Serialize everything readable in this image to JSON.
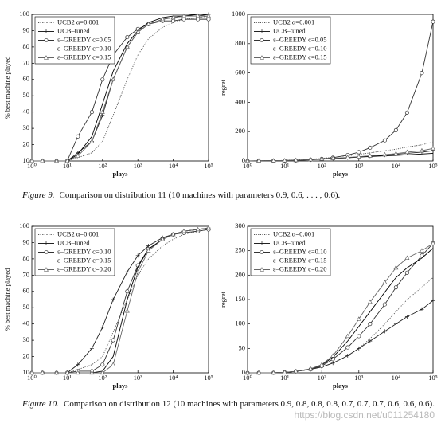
{
  "chart_data": [
    {
      "type": "line",
      "xlabel": "plays",
      "ylabel": "% best machine played",
      "xscale": "log",
      "x": [
        1,
        2,
        5,
        10,
        20,
        50,
        100,
        200,
        500,
        1000,
        2000,
        5000,
        10000,
        20000,
        50000,
        100000
      ],
      "xlim": [
        1,
        100000
      ],
      "xticks": [
        {
          "value": 1,
          "label": "10⁰"
        },
        {
          "value": 10,
          "label": "10¹"
        },
        {
          "value": 100,
          "label": "10²"
        },
        {
          "value": 1000,
          "label": "10³"
        },
        {
          "value": 10000,
          "label": "10⁴"
        },
        {
          "value": 100000,
          "label": "10⁵"
        }
      ],
      "ylim": [
        10,
        100
      ],
      "yticks": [
        10,
        20,
        30,
        40,
        50,
        60,
        70,
        80,
        90,
        100
      ],
      "legend": "upper left",
      "series": [
        {
          "name": "UCB2 α=0.001",
          "color": "#555555",
          "dash": "dotted",
          "marker": "none",
          "values": [
            10,
            10,
            10,
            10,
            12,
            15,
            22,
            38,
            60,
            75,
            85,
            92,
            95,
            97,
            98,
            99
          ]
        },
        {
          "name": "UCB–tuned",
          "color": "#222222",
          "dash": "solid",
          "marker": "plus",
          "values": [
            10,
            10,
            10,
            10,
            15,
            22,
            38,
            60,
            80,
            89,
            94,
            97,
            98,
            99,
            99,
            100
          ]
        },
        {
          "name": "ε–GREEDY c=0.05",
          "color": "#333333",
          "dash": "solid",
          "marker": "circle",
          "values": [
            10,
            10,
            10,
            10,
            25,
            40,
            60,
            75,
            86,
            91,
            94,
            96,
            96,
            97,
            97,
            97
          ]
        },
        {
          "name": "ε–GREEDY c=0.10",
          "color": "#000000",
          "dash": "solid",
          "marker": "none",
          "values": [
            10,
            10,
            10,
            10,
            14,
            25,
            45,
            65,
            82,
            90,
            95,
            98,
            99,
            99,
            100,
            100
          ]
        },
        {
          "name": "ε–GREEDY c=0.15",
          "color": "#666666",
          "dash": "solid",
          "marker": "triangle",
          "values": [
            10,
            10,
            10,
            10,
            13,
            22,
            40,
            60,
            80,
            89,
            94,
            97,
            98,
            99,
            99,
            99
          ]
        }
      ]
    },
    {
      "type": "line",
      "xlabel": "plays",
      "ylabel": "regret",
      "xscale": "log",
      "x": [
        1,
        2,
        5,
        10,
        20,
        50,
        100,
        200,
        500,
        1000,
        2000,
        5000,
        10000,
        20000,
        50000,
        100000
      ],
      "xlim": [
        1,
        100000
      ],
      "xticks": [
        {
          "value": 1,
          "label": "10⁰"
        },
        {
          "value": 10,
          "label": "10¹"
        },
        {
          "value": 100,
          "label": "10²"
        },
        {
          "value": 1000,
          "label": "10³"
        },
        {
          "value": 10000,
          "label": "10⁴"
        },
        {
          "value": 100000,
          "label": "10⁵"
        }
      ],
      "ylim": [
        0,
        1000
      ],
      "yticks": [
        0,
        200,
        400,
        600,
        800,
        1000
      ],
      "legend": "upper left",
      "series": [
        {
          "name": "UCB2 α=0.001",
          "color": "#555555",
          "dash": "dotted",
          "marker": "none",
          "values": [
            0,
            1,
            2,
            4,
            7,
            12,
            18,
            25,
            35,
            45,
            55,
            70,
            80,
            95,
            110,
            130
          ]
        },
        {
          "name": "UCB–tuned",
          "color": "#222222",
          "dash": "solid",
          "marker": "plus",
          "values": [
            0,
            1,
            2,
            3,
            5,
            8,
            12,
            16,
            22,
            28,
            33,
            40,
            45,
            52,
            60,
            70
          ]
        },
        {
          "name": "ε–GREEDY c=0.05",
          "color": "#333333",
          "dash": "solid",
          "marker": "circle",
          "values": [
            0,
            0,
            1,
            2,
            4,
            8,
            14,
            22,
            40,
            60,
            90,
            140,
            210,
            330,
            600,
            950
          ]
        },
        {
          "name": "ε–GREEDY c=0.10",
          "color": "#000000",
          "dash": "solid",
          "marker": "none",
          "values": [
            0,
            1,
            2,
            3,
            5,
            9,
            13,
            17,
            22,
            26,
            30,
            35,
            38,
            42,
            47,
            52
          ]
        },
        {
          "name": "ε–GREEDY c=0.15",
          "color": "#666666",
          "dash": "solid",
          "marker": "triangle",
          "values": [
            0,
            1,
            2,
            3,
            5,
            9,
            14,
            18,
            24,
            29,
            35,
            43,
            50,
            60,
            70,
            85
          ]
        }
      ]
    },
    {
      "type": "line",
      "xlabel": "plays",
      "ylabel": "% best machine played",
      "xscale": "log",
      "x": [
        1,
        2,
        5,
        10,
        20,
        50,
        100,
        200,
        500,
        1000,
        2000,
        5000,
        10000,
        20000,
        50000,
        100000
      ],
      "xlim": [
        1,
        100000
      ],
      "xticks": [
        {
          "value": 1,
          "label": "10⁰"
        },
        {
          "value": 10,
          "label": "10¹"
        },
        {
          "value": 100,
          "label": "10²"
        },
        {
          "value": 1000,
          "label": "10³"
        },
        {
          "value": 10000,
          "label": "10⁴"
        },
        {
          "value": 100000,
          "label": "10⁵"
        }
      ],
      "ylim": [
        10,
        100
      ],
      "yticks": [
        10,
        20,
        30,
        40,
        50,
        60,
        70,
        80,
        90,
        100
      ],
      "legend": "upper left",
      "series": [
        {
          "name": "UCB2 α=0.001",
          "color": "#555555",
          "dash": "dotted",
          "marker": "none",
          "values": [
            10,
            10,
            10,
            10,
            12,
            15,
            20,
            35,
            55,
            70,
            80,
            88,
            92,
            95,
            97,
            98
          ]
        },
        {
          "name": "UCB–tuned",
          "color": "#222222",
          "dash": "solid",
          "marker": "plus",
          "values": [
            10,
            10,
            10,
            10,
            15,
            25,
            38,
            55,
            72,
            82,
            88,
            93,
            95,
            97,
            98,
            99
          ]
        },
        {
          "name": "ε–GREEDY c=0.10",
          "color": "#333333",
          "dash": "solid",
          "marker": "circle",
          "values": [
            10,
            10,
            10,
            10,
            11,
            11,
            15,
            30,
            60,
            76,
            86,
            92,
            95,
            96,
            97,
            98
          ]
        },
        {
          "name": "ε–GREEDY c=0.15",
          "color": "#000000",
          "dash": "solid",
          "marker": "none",
          "values": [
            10,
            10,
            10,
            10,
            10,
            10,
            11,
            20,
            55,
            75,
            86,
            92,
            95,
            97,
            98,
            99
          ]
        },
        {
          "name": "ε–GREEDY c=0.20",
          "color": "#666666",
          "dash": "solid",
          "marker": "triangle",
          "values": [
            10,
            10,
            10,
            10,
            10,
            10,
            10,
            15,
            48,
            72,
            85,
            92,
            95,
            97,
            98,
            99
          ]
        }
      ]
    },
    {
      "type": "line",
      "xlabel": "plays",
      "ylabel": "regret",
      "xscale": "log",
      "x": [
        1,
        2,
        5,
        10,
        20,
        50,
        100,
        200,
        500,
        1000,
        2000,
        5000,
        10000,
        20000,
        50000,
        100000
      ],
      "xlim": [
        1,
        100000
      ],
      "xticks": [
        {
          "value": 1,
          "label": "10⁰"
        },
        {
          "value": 10,
          "label": "10¹"
        },
        {
          "value": 100,
          "label": "10²"
        },
        {
          "value": 1000,
          "label": "10³"
        },
        {
          "value": 10000,
          "label": "10⁴"
        },
        {
          "value": 100000,
          "label": "10⁵"
        }
      ],
      "ylim": [
        0,
        300
      ],
      "yticks": [
        0,
        50,
        100,
        150,
        200,
        250,
        300
      ],
      "legend": "upper left",
      "series": [
        {
          "name": "UCB2 α=0.001",
          "color": "#555555",
          "dash": "dotted",
          "marker": "none",
          "values": [
            0,
            0,
            0,
            1,
            3,
            7,
            12,
            20,
            35,
            50,
            70,
            100,
            125,
            150,
            175,
            195
          ]
        },
        {
          "name": "UCB–tuned",
          "color": "#222222",
          "dash": "solid",
          "marker": "plus",
          "values": [
            0,
            0,
            0,
            1,
            3,
            7,
            12,
            20,
            35,
            50,
            65,
            85,
            100,
            115,
            130,
            148
          ]
        },
        {
          "name": "ε–GREEDY c=0.10",
          "color": "#333333",
          "dash": "solid",
          "marker": "circle",
          "values": [
            0,
            0,
            0,
            1,
            3,
            7,
            14,
            28,
            52,
            75,
            100,
            140,
            175,
            205,
            240,
            265
          ]
        },
        {
          "name": "ε–GREEDY c=0.15",
          "color": "#000000",
          "dash": "solid",
          "marker": "none",
          "values": [
            0,
            0,
            0,
            1,
            3,
            8,
            16,
            32,
            65,
            95,
            125,
            165,
            195,
            215,
            235,
            255
          ]
        },
        {
          "name": "ε–GREEDY c=0.20",
          "color": "#666666",
          "dash": "solid",
          "marker": "triangle",
          "values": [
            0,
            0,
            0,
            1,
            3,
            8,
            17,
            35,
            75,
            110,
            145,
            185,
            215,
            235,
            250,
            265
          ]
        }
      ]
    }
  ],
  "captions": [
    {
      "label": "Figure 9.",
      "text": "Comparison on distribution 11 (10 machines with parameters 0.9, 0.6, . . . , 0.6)."
    },
    {
      "label": "Figure 10.",
      "text": "Comparison on distribution 12 (10 machines with parameters 0.9, 0.8, 0.8, 0.8, 0.7, 0.7, 0.7, 0.6, 0.6, 0.6)."
    }
  ],
  "watermark": "https://blog.csdn.net/u011254180"
}
